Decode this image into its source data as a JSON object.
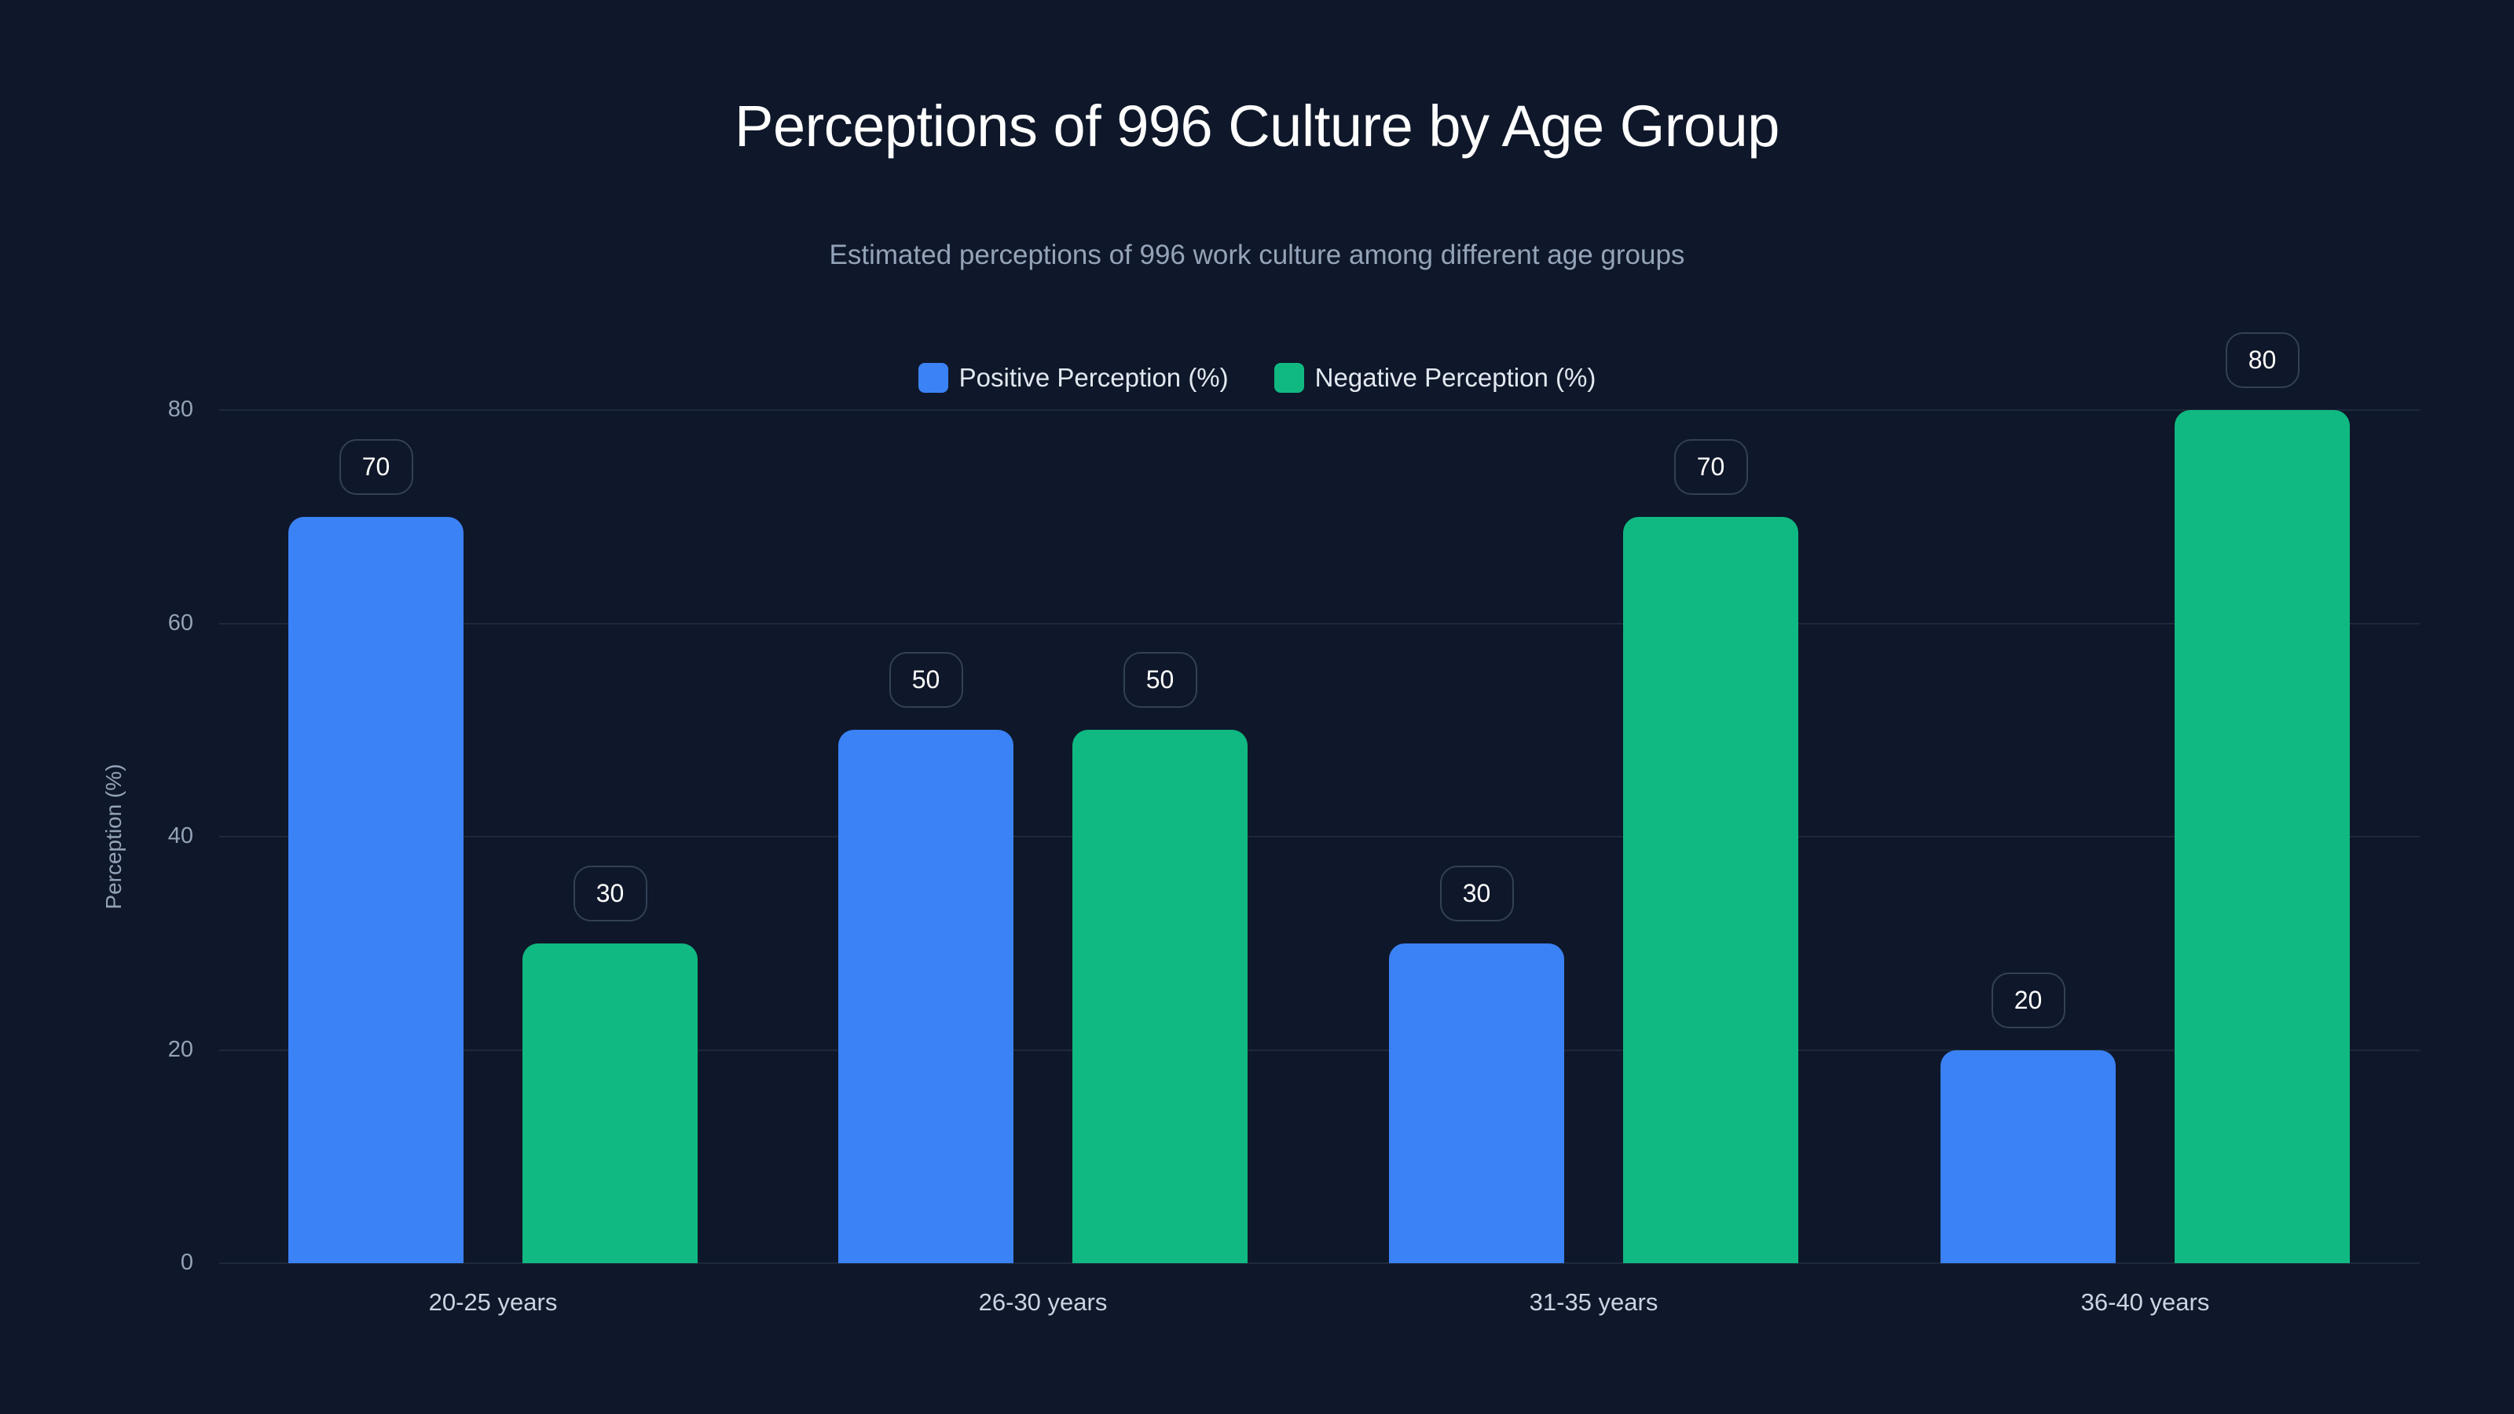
{
  "chart_data": {
    "type": "bar",
    "title": "Perceptions of 996 Culture by Age Group",
    "subtitle": "Estimated perceptions of 996 work culture among different age groups",
    "xlabel": "",
    "ylabel": "Perception (%)",
    "ylim": [
      0,
      80
    ],
    "yticks": [
      0,
      20,
      40,
      60,
      80
    ],
    "grid": true,
    "legend_position": "top-center",
    "categories": [
      "20-25 years",
      "26-30 years",
      "31-35 years",
      "36-40 years"
    ],
    "series": [
      {
        "name": "Positive Perception (%)",
        "color": "#3b82f6",
        "values": [
          70,
          50,
          30,
          20
        ]
      },
      {
        "name": "Negative Perception (%)",
        "color": "#10b981",
        "values": [
          30,
          50,
          70,
          80
        ]
      }
    ]
  },
  "colors": {
    "background": "#0f172a",
    "positive": "#3b82f6",
    "negative": "#10b981",
    "grid": "#1e293b",
    "muted_text": "#94a3b8"
  }
}
